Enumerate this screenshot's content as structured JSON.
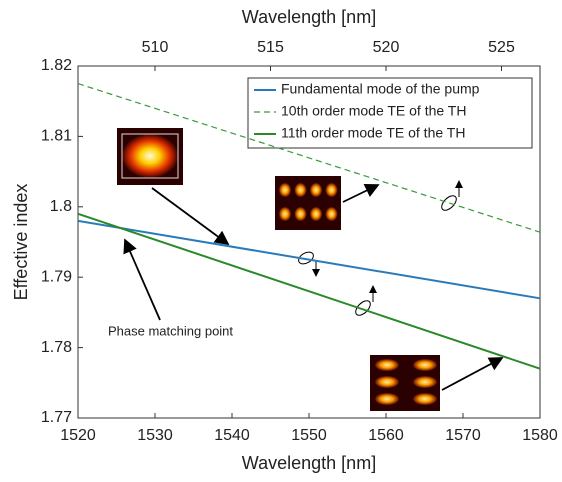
{
  "chart_data": {
    "type": "line",
    "xlabel": "Wavelength [nm]",
    "ylabel": "Effective index",
    "x2label": "Wavelength [nm]",
    "x": [
      1520,
      1580
    ],
    "series": [
      {
        "name": "Fundamental mode of the pump",
        "color": "#2a7ab9",
        "dash": false,
        "values": [
          1.798,
          1.787
        ]
      },
      {
        "name": "10th order mode TE of the TH",
        "color": "#3a9a3a",
        "dash": true,
        "values": [
          1.8175,
          1.7964
        ]
      },
      {
        "name": "11th order mode TE of the TH",
        "color": "#2a8a2a",
        "dash": false,
        "values": [
          1.799,
          1.777
        ]
      }
    ],
    "xlim": [
      1520,
      1580
    ],
    "xticks": [
      1520,
      1530,
      1540,
      1550,
      1560,
      1570,
      1580
    ],
    "ylim": [
      1.77,
      1.82
    ],
    "yticks": [
      1.77,
      1.78,
      1.79,
      1.8,
      1.81,
      1.82
    ],
    "x2lim": [
      506.667,
      526.667
    ],
    "x2ticks": [
      510,
      515,
      520,
      525
    ],
    "annotations": [
      "Phase matching point"
    ],
    "grid": false,
    "legend": "upper right"
  }
}
